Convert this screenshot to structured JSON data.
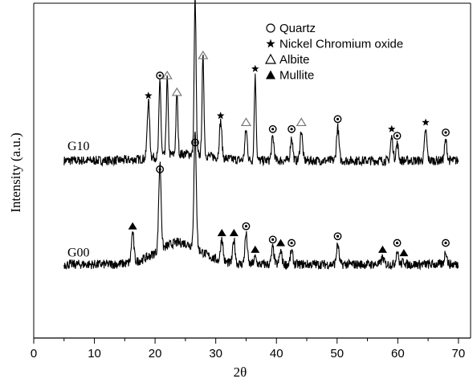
{
  "chart_data": {
    "type": "line",
    "xlabel": "2θ",
    "ylabel": "Intensity (a.u.)",
    "xlim": [
      0,
      72
    ],
    "x_ticks": [
      0,
      10,
      20,
      30,
      40,
      50,
      60,
      70
    ],
    "y_ticks_shown": false,
    "grid": false,
    "legend_position": "top-right",
    "legend": [
      {
        "symbol": "circle-open",
        "label": "Quartz"
      },
      {
        "symbol": "star",
        "label": "Nickel Chromium oxide"
      },
      {
        "symbol": "triangle-open",
        "label": "Albite"
      },
      {
        "symbol": "triangle-filled",
        "label": "Mullite"
      }
    ],
    "series": [
      {
        "name": "G10",
        "baseline": 0.53,
        "peaks": [
          {
            "x": 18.9,
            "y": 0.7,
            "phase": "Nickel Chromium oxide"
          },
          {
            "x": 20.8,
            "y": 0.76,
            "phase": "Quartz"
          },
          {
            "x": 22.0,
            "y": 0.76,
            "phase": "Albite"
          },
          {
            "x": 23.6,
            "y": 0.71,
            "phase": "Albite"
          },
          {
            "x": 26.6,
            "y": 1.0,
            "phase": "Quartz"
          },
          {
            "x": 27.9,
            "y": 0.82,
            "phase": "Albite"
          },
          {
            "x": 30.8,
            "y": 0.64,
            "phase": "Nickel Chromium oxide"
          },
          {
            "x": 35.0,
            "y": 0.62,
            "phase": "Albite"
          },
          {
            "x": 36.5,
            "y": 0.78,
            "phase": "Nickel Chromium oxide"
          },
          {
            "x": 39.4,
            "y": 0.6,
            "phase": "Quartz"
          },
          {
            "x": 42.5,
            "y": 0.6,
            "phase": "Quartz"
          },
          {
            "x": 44.1,
            "y": 0.62,
            "phase": "Albite"
          },
          {
            "x": 50.1,
            "y": 0.63,
            "phase": "Quartz"
          },
          {
            "x": 59.0,
            "y": 0.6,
            "phase": "Nickel Chromium oxide"
          },
          {
            "x": 59.9,
            "y": 0.58,
            "phase": "Quartz"
          },
          {
            "x": 64.6,
            "y": 0.62,
            "phase": "Nickel Chromium oxide"
          },
          {
            "x": 67.9,
            "y": 0.59,
            "phase": "Quartz"
          }
        ]
      },
      {
        "name": "G00",
        "baseline": 0.22,
        "peaks": [
          {
            "x": 16.3,
            "y": 0.31,
            "phase": "Mullite"
          },
          {
            "x": 20.8,
            "y": 0.48,
            "phase": "Quartz"
          },
          {
            "x": 26.6,
            "y": 0.56,
            "phase": "Quartz"
          },
          {
            "x": 31.0,
            "y": 0.29,
            "phase": "Mullite"
          },
          {
            "x": 33.0,
            "y": 0.29,
            "phase": "Mullite"
          },
          {
            "x": 35.0,
            "y": 0.31,
            "phase": "Quartz"
          },
          {
            "x": 36.5,
            "y": 0.24,
            "phase": "Mullite"
          },
          {
            "x": 39.4,
            "y": 0.27,
            "phase": "Quartz"
          },
          {
            "x": 40.7,
            "y": 0.26,
            "phase": "Mullite"
          },
          {
            "x": 42.5,
            "y": 0.26,
            "phase": "Quartz"
          },
          {
            "x": 50.1,
            "y": 0.28,
            "phase": "Quartz"
          },
          {
            "x": 57.5,
            "y": 0.24,
            "phase": "Mullite"
          },
          {
            "x": 59.9,
            "y": 0.26,
            "phase": "Quartz"
          },
          {
            "x": 61.0,
            "y": 0.23,
            "phase": "Mullite"
          },
          {
            "x": 67.9,
            "y": 0.26,
            "phase": "Quartz"
          }
        ]
      }
    ]
  }
}
